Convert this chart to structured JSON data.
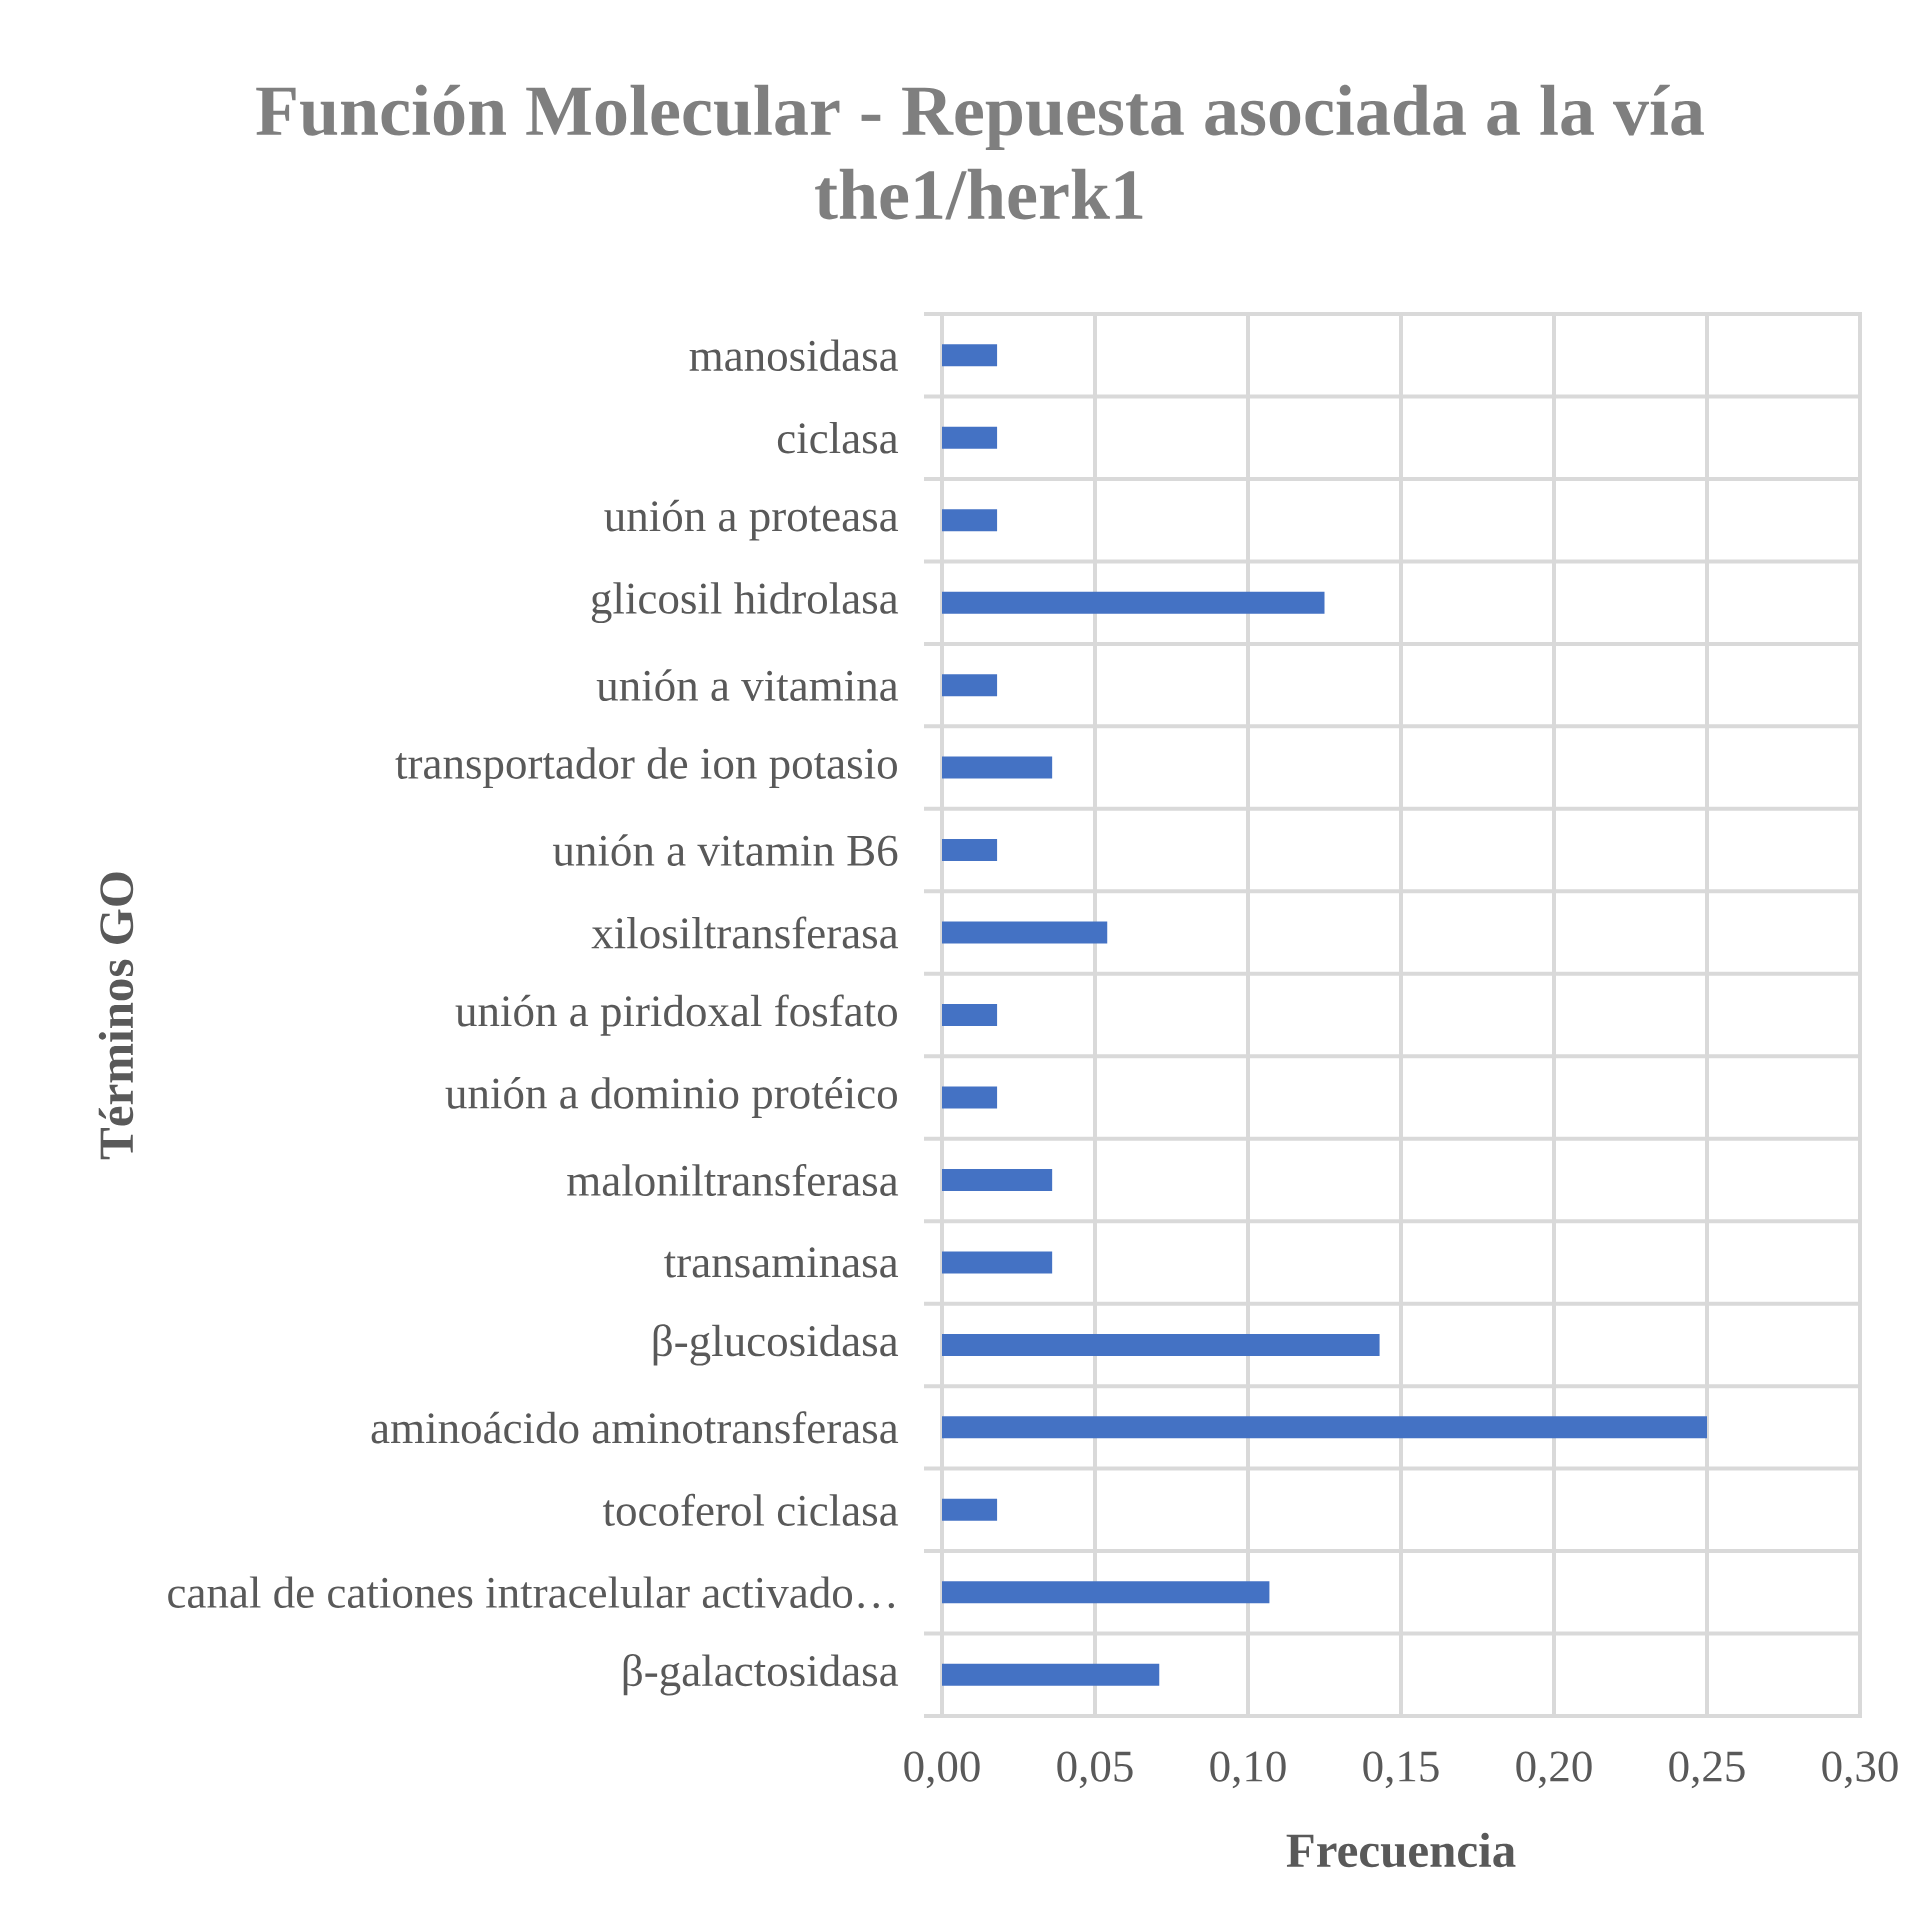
{
  "chart_data": {
    "type": "bar",
    "orientation": "horizontal",
    "title": "Función Molecular - Repuesta asociada a la vía the1/herk1",
    "xlabel": "Frecuencia",
    "ylabel": "Términos GO",
    "categories": [
      "manosidasa",
      "ciclasa",
      "unión a proteasa",
      "glicosil hidrolasa",
      "unión a vitamina",
      "transportador de ion potasio",
      "unión a vitamin B6",
      "xilosiltransferasa",
      "unión a piridoxal fosfato",
      "unión a dominio protéico",
      "maloniltransferasa",
      "transaminasa",
      "β-glucosidasa",
      "aminoácido aminotransferasa",
      "tocoferol ciclasa",
      "canal de cationes intracelular activado…",
      "β-galactosidasa"
    ],
    "values": [
      0.018,
      0.018,
      0.018,
      0.125,
      0.018,
      0.036,
      0.018,
      0.054,
      0.018,
      0.018,
      0.036,
      0.036,
      0.143,
      0.25,
      0.018,
      0.107,
      0.071
    ],
    "color": "#4472c4",
    "xlim": [
      0,
      0.3
    ],
    "xticks": [
      {
        "value": 0,
        "label": "0,00"
      },
      {
        "value": 0.05,
        "label": "0,05"
      },
      {
        "value": 0.1,
        "label": "0,10"
      },
      {
        "value": 0.15,
        "label": "0,15"
      },
      {
        "value": 0.2,
        "label": "0,20"
      },
      {
        "value": 0.25,
        "label": "0,25"
      },
      {
        "value": 0.3,
        "label": "0,30"
      }
    ],
    "grid": true
  }
}
